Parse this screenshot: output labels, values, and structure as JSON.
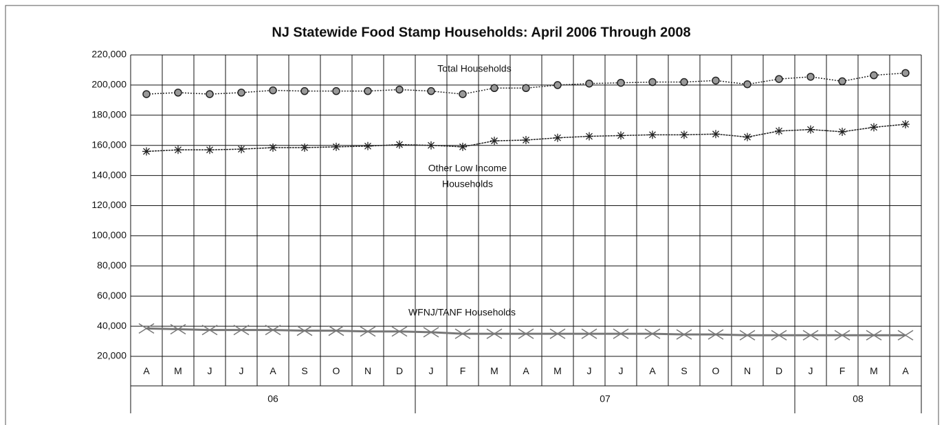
{
  "chart_data": {
    "type": "line",
    "title": "NJ Statewide Food Stamp Households: April 2006 Through 2008",
    "categories": [
      "A",
      "M",
      "J",
      "J",
      "A",
      "S",
      "O",
      "N",
      "D",
      "J",
      "F",
      "M",
      "A",
      "M",
      "J",
      "J",
      "A",
      "S",
      "O",
      "N",
      "D",
      "J",
      "F",
      "M",
      "A"
    ],
    "category_groups": [
      {
        "label": "06",
        "size": 9
      },
      {
        "label": "07",
        "size": 12
      },
      {
        "label": "08",
        "size": 4
      }
    ],
    "ylim": [
      20000,
      220000
    ],
    "yticks": [
      {
        "value": 20000,
        "label": "20,000"
      },
      {
        "value": 40000,
        "label": "40,000"
      },
      {
        "value": 60000,
        "label": "60,000"
      },
      {
        "value": 80000,
        "label": "80,000"
      },
      {
        "value": 100000,
        "label": "100,000"
      },
      {
        "value": 120000,
        "label": "120,000"
      },
      {
        "value": 140000,
        "label": "140,000"
      },
      {
        "value": 160000,
        "label": "160,000"
      },
      {
        "value": 180000,
        "label": "180,000"
      },
      {
        "value": 200000,
        "label": "200,000"
      },
      {
        "value": 220000,
        "label": "220,000"
      }
    ],
    "grid": true,
    "series": [
      {
        "label_lines": [
          "Total Households"
        ],
        "color": "#222222",
        "marker": "circle",
        "values": [
          194000,
          195000,
          194000,
          195000,
          196500,
          196000,
          196000,
          196000,
          197000,
          196000,
          194000,
          198000,
          198000,
          200000,
          201000,
          201500,
          202000,
          202000,
          203000,
          200500,
          204000,
          205500,
          202500,
          206500,
          208000
        ]
      },
      {
        "label_lines": [
          "Other Low Income",
          "Households"
        ],
        "color": "#222222",
        "marker": "asterisk",
        "values": [
          156000,
          157000,
          157000,
          157500,
          158500,
          158500,
          159000,
          159500,
          160500,
          160000,
          159000,
          163000,
          163500,
          165000,
          166000,
          166500,
          167000,
          167000,
          167500,
          165500,
          169500,
          170500,
          169000,
          172000,
          174000
        ]
      },
      {
        "label_lines": [
          "WFNJ/TANF Households"
        ],
        "color": "#777777",
        "marker": "x",
        "values": [
          38500,
          38000,
          37500,
          37500,
          37500,
          37000,
          37000,
          36500,
          36500,
          36000,
          35000,
          35000,
          35000,
          35000,
          35000,
          35000,
          35000,
          34500,
          34500,
          34000,
          34000,
          34000,
          34000,
          34000,
          34000
        ]
      }
    ]
  }
}
